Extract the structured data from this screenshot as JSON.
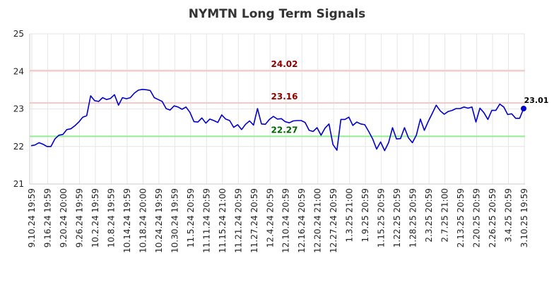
{
  "chart_data": {
    "type": "line",
    "title": "NYMTN Long Term Signals",
    "xlabel": "",
    "ylabel": "",
    "ylim": [
      21,
      25
    ],
    "y_ticks": [
      "21",
      "22",
      "23",
      "24",
      "25"
    ],
    "grid": true,
    "x_tick_labels": [
      "9.10.24 19:59",
      "9.16.24 19:59",
      "9.20.24 20:00",
      "9.26.24 19:59",
      "10.2.24 19:59",
      "10.8.24 19:59",
      "10.14.24 19:59",
      "10.18.24 20:00",
      "10.24.24 19:59",
      "10.30.24 19:59",
      "11.5.24 20:59",
      "11.11.24 20:59",
      "11.15.24 21:00",
      "11.21.24 20:59",
      "11.27.24 20:59",
      "12.4.24 20:59",
      "12.10.24 20:59",
      "12.16.24 20:59",
      "12.20.24 21:00",
      "12.27.24 20:59",
      "1.3.25 21:00",
      "1.9.25 20:59",
      "1.15.25 20:59",
      "1.22.25 20:59",
      "1.28.25 20:59",
      "2.3.25 20:59",
      "2.7.25 21:00",
      "2.13.25 20:59",
      "2.20.25 20:59",
      "2.26.25 20:59",
      "3.4.25 20:59",
      "3.10.25 19:59"
    ],
    "series": [
      {
        "color": "#0000cc",
        "values": [
          22.02,
          22.04,
          22.1,
          22.06,
          22.0,
          22.0,
          22.2,
          22.3,
          22.32,
          22.45,
          22.47,
          22.55,
          22.65,
          22.78,
          22.82,
          23.35,
          23.22,
          23.2,
          23.3,
          23.25,
          23.28,
          23.38,
          23.1,
          23.3,
          23.27,
          23.3,
          23.42,
          23.5,
          23.52,
          23.51,
          23.49,
          23.3,
          23.25,
          23.2,
          23.01,
          22.97,
          23.08,
          23.05,
          22.99,
          23.05,
          22.91,
          22.66,
          22.65,
          22.76,
          22.62,
          22.73,
          22.69,
          22.64,
          22.84,
          22.73,
          22.69,
          22.51,
          22.58,
          22.45,
          22.59,
          22.68,
          22.57,
          23.01,
          22.6,
          22.59,
          22.72,
          22.8,
          22.73,
          22.74,
          22.66,
          22.63,
          22.68,
          22.69,
          22.69,
          22.64,
          22.43,
          22.4,
          22.5,
          22.3,
          22.49,
          22.6,
          22.05,
          21.9,
          22.72,
          22.72,
          22.78,
          22.56,
          22.65,
          22.6,
          22.58,
          22.4,
          22.2,
          21.93,
          22.12,
          21.89,
          22.1,
          22.5,
          22.2,
          22.21,
          22.5,
          22.23,
          22.1,
          22.3,
          22.73,
          22.43,
          22.67,
          22.88,
          23.1,
          22.95,
          22.86,
          22.93,
          22.96,
          23.01,
          23.01,
          23.05,
          23.02,
          23.05,
          22.65,
          23.02,
          22.9,
          22.72,
          22.96,
          22.96,
          23.13,
          23.05,
          22.85,
          22.87,
          22.75,
          22.75,
          23.01
        ]
      }
    ],
    "last_value_label": "23.01",
    "reference_lines": [
      {
        "value": 24.02,
        "label": "24.02",
        "line_color": "#f8c8c8",
        "label_color": "#8b0000"
      },
      {
        "value": 23.16,
        "label": "23.16",
        "line_color": "#f8c8c8",
        "label_color": "#8b0000"
      },
      {
        "value": 22.27,
        "label": "22.27",
        "line_color": "#90ee90",
        "label_color": "#006400"
      }
    ]
  }
}
